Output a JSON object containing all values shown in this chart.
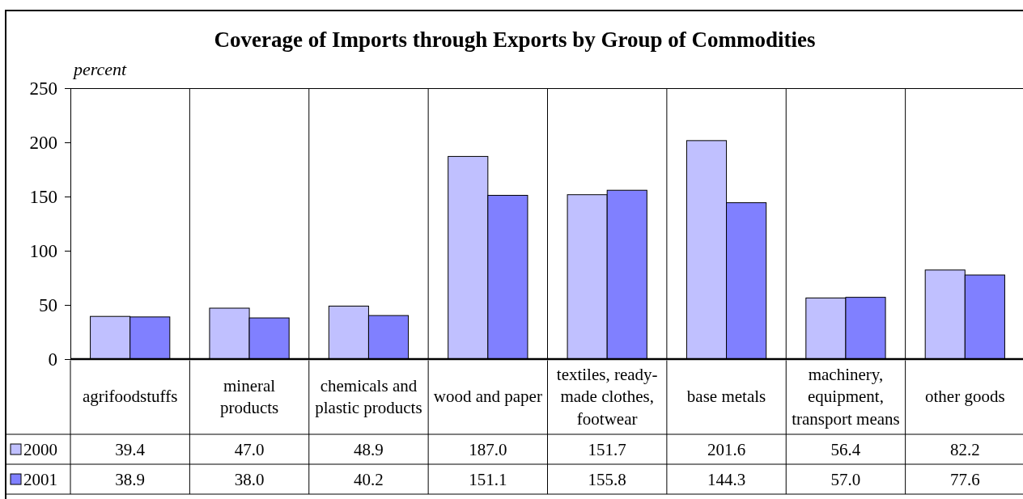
{
  "chart_data": {
    "type": "bar",
    "title": "Coverage of Imports through Exports by Group of Commodities",
    "ylabel": "percent",
    "categories": [
      "agrifoodstuffs",
      "mineral\nproducts",
      "chemicals and\nplastic products",
      "wood and paper",
      "textiles, ready-\nmade clothes,\nfootwear",
      "base metals",
      "machinery,\nequipment,\ntransport means",
      "other goods"
    ],
    "series": [
      {
        "name": "2000",
        "color": "#c0c0ff",
        "values": [
          39.4,
          47.0,
          48.9,
          187.0,
          151.7,
          201.6,
          56.4,
          82.2
        ],
        "value_labels": [
          "39.4",
          "47.0",
          "48.9",
          "187.0",
          "151.7",
          "201.6",
          "56.4",
          "82.2"
        ]
      },
      {
        "name": "2001",
        "color": "#8080ff",
        "values": [
          38.9,
          38.0,
          40.2,
          151.1,
          155.8,
          144.3,
          57.0,
          77.6
        ],
        "value_labels": [
          "38.9",
          "38.0",
          "40.2",
          "151.1",
          "155.8",
          "144.3",
          "57.0",
          "77.6"
        ]
      }
    ],
    "ylim": [
      0,
      250
    ],
    "yticks": [
      0,
      50,
      100,
      150,
      200,
      250
    ],
    "grid": "x",
    "legend": "bottom left"
  }
}
